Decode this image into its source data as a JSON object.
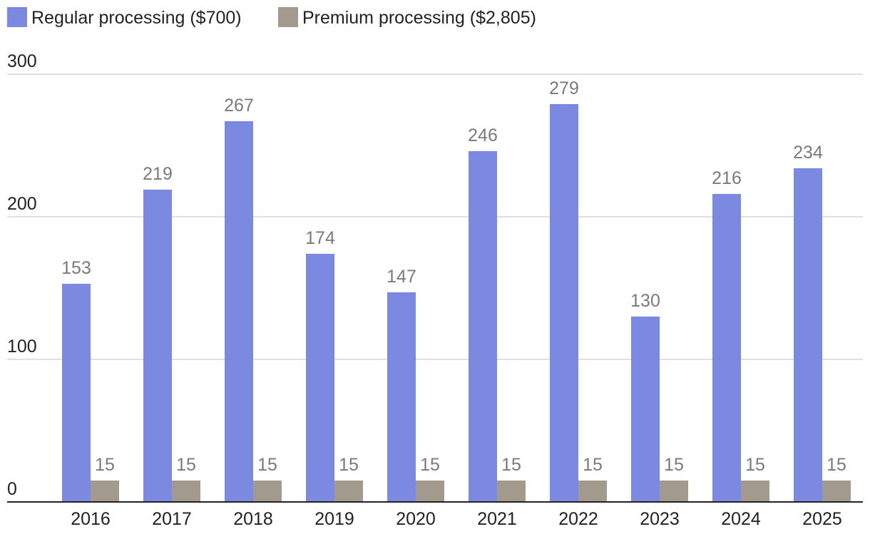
{
  "chart_data": {
    "type": "bar",
    "title": "",
    "xlabel": "",
    "ylabel": "",
    "ylim": [
      0,
      300
    ],
    "yticks": [
      0,
      100,
      200,
      300
    ],
    "grid": true,
    "legend_position": "top-left",
    "categories": [
      "2016",
      "2017",
      "2018",
      "2019",
      "2020",
      "2021",
      "2022",
      "2023",
      "2024",
      "2025"
    ],
    "series": [
      {
        "name": "Regular processing ($700)",
        "color": "#7b8ae0",
        "values": [
          153,
          219,
          267,
          174,
          147,
          246,
          279,
          130,
          216,
          234
        ]
      },
      {
        "name": "Premium processing ($2,805)",
        "color": "#a29a8d",
        "values": [
          15,
          15,
          15,
          15,
          15,
          15,
          15,
          15,
          15,
          15
        ]
      }
    ]
  }
}
